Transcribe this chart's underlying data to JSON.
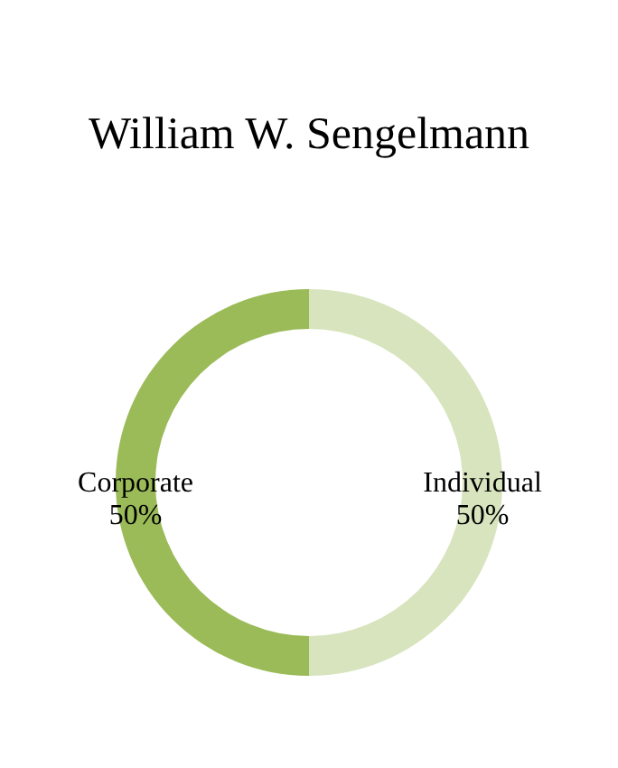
{
  "chart_data": {
    "type": "donut",
    "title": "William W. Sengelmann",
    "categories": [
      "Individual",
      "Corporate"
    ],
    "values": [
      50,
      50
    ],
    "value_labels": [
      "50%",
      "50%"
    ],
    "colors": [
      "#d7e4bd",
      "#9bbb59"
    ],
    "legend": false
  }
}
